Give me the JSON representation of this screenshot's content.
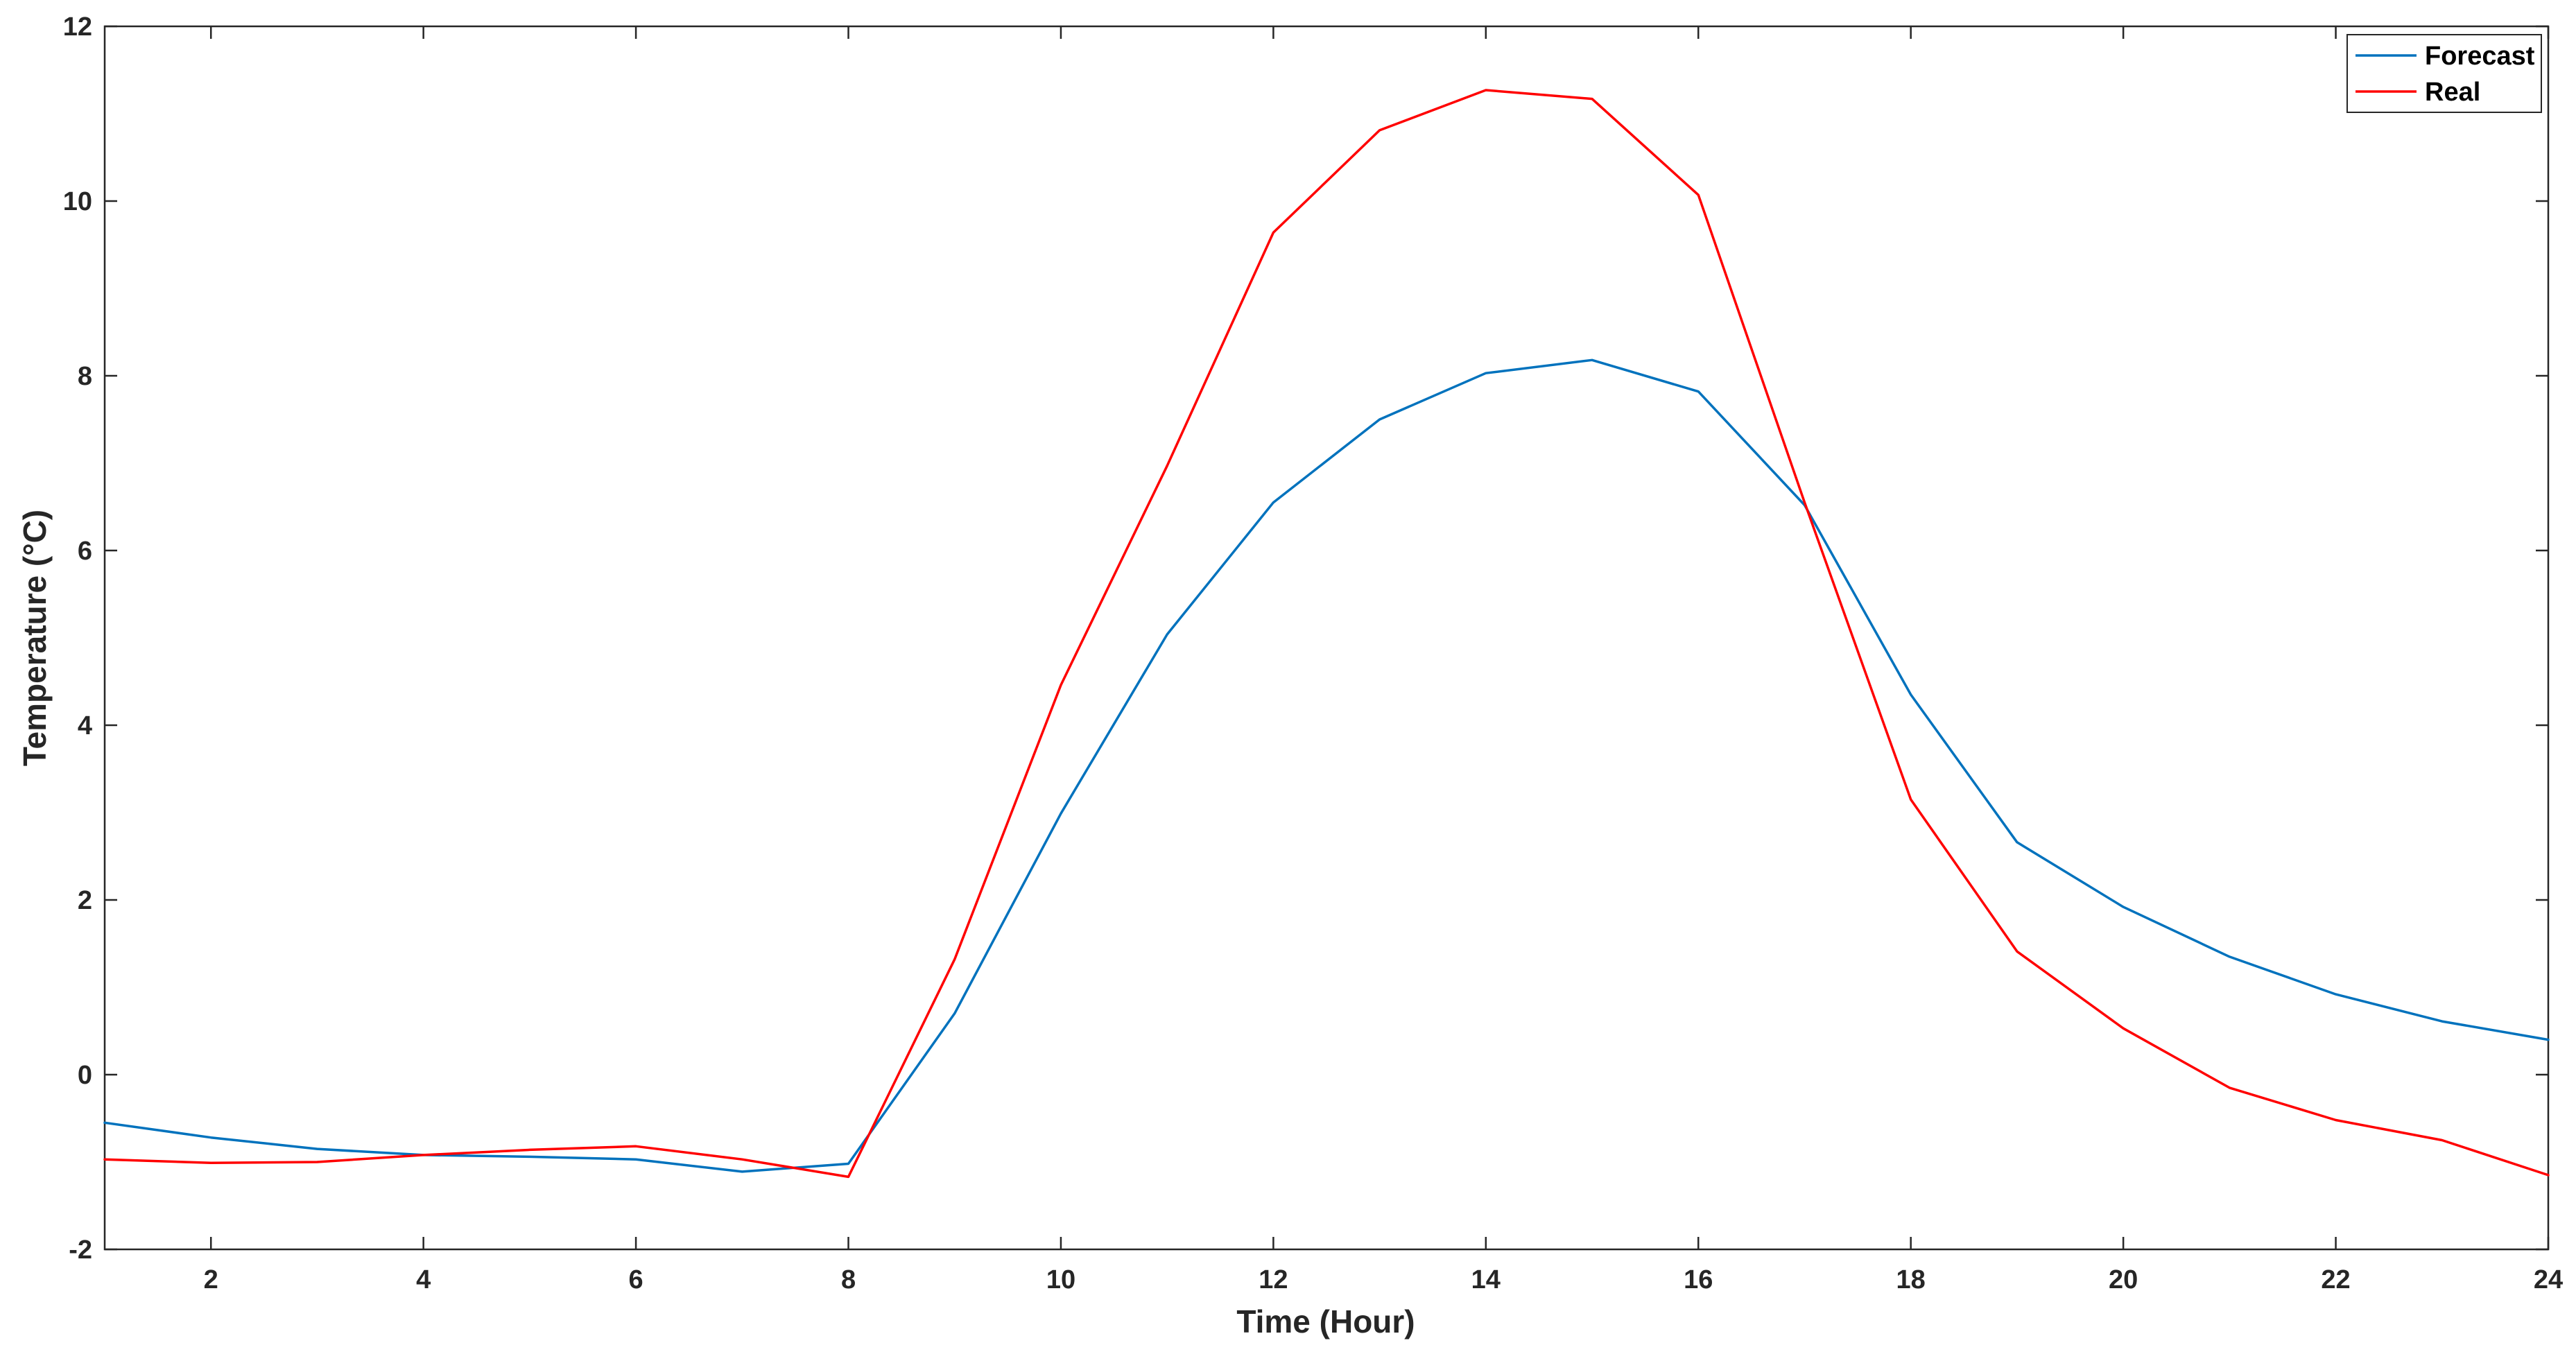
{
  "chart_data": {
    "type": "line",
    "title": "",
    "xlabel": "Time (Hour)",
    "ylabel": "Temperature (°C)",
    "xlim": [
      1,
      24
    ],
    "ylim": [
      -2,
      12
    ],
    "x": [
      1,
      2,
      3,
      4,
      5,
      6,
      7,
      8,
      9,
      10,
      11,
      12,
      13,
      14,
      15,
      16,
      17,
      18,
      19,
      20,
      21,
      22,
      23,
      24
    ],
    "xticks": [
      2,
      4,
      6,
      8,
      10,
      12,
      14,
      16,
      18,
      20,
      22,
      24
    ],
    "yticks": [
      -2,
      0,
      2,
      4,
      6,
      8,
      10,
      12
    ],
    "grid": false,
    "legend_position": "top-right",
    "series": [
      {
        "name": "Forecast",
        "color": "#0072BD",
        "values": [
          -0.55,
          -0.72,
          -0.85,
          -0.92,
          -0.94,
          -0.97,
          -1.11,
          -1.02,
          0.7,
          2.99,
          5.04,
          6.55,
          7.5,
          8.03,
          8.18,
          7.82,
          6.52,
          4.35,
          2.66,
          1.92,
          1.35,
          0.92,
          0.61,
          0.4
        ]
      },
      {
        "name": "Real",
        "color": "#FF0000",
        "values": [
          -0.97,
          -1.01,
          -1.0,
          -0.92,
          -0.86,
          -0.82,
          -0.97,
          -1.17,
          1.32,
          4.46,
          6.97,
          9.64,
          10.81,
          11.27,
          11.17,
          10.07,
          6.55,
          3.15,
          1.41,
          0.53,
          -0.15,
          -0.52,
          -0.75,
          -1.15
        ]
      }
    ]
  }
}
